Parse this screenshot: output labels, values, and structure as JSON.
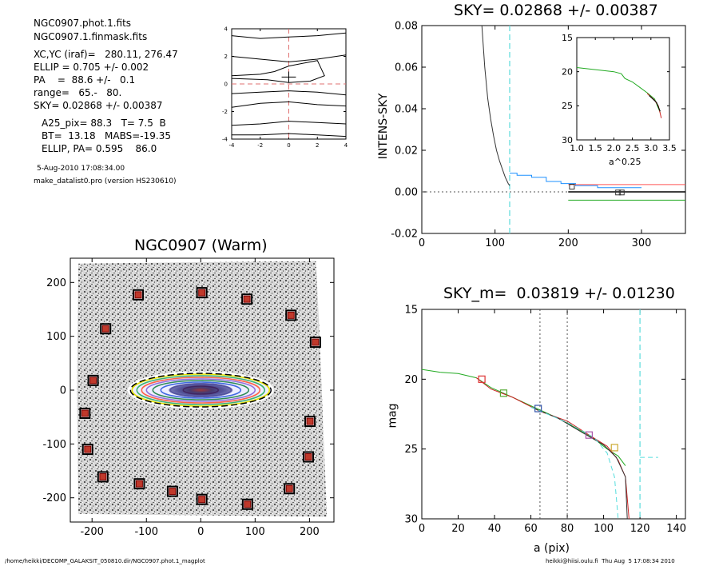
{
  "info": {
    "file1": "NGC0907.phot.1.fits",
    "file2": "NGC0907.1.finmask.fits",
    "xcyc": "XC,YC (iraf)=   280.11, 276.47",
    "ellip": "ELLIP = 0.705 +/- 0.002",
    "pa": "PA    =  88.6 +/-   0.1",
    "range": "range=   65.-   80.",
    "sky": "SKY= 0.02868 +/- 0.00387",
    "a25": "A25_pix= 88.3   T= 7.5  B",
    "bt": "BT=  13.18   MABS=-19.35",
    "ellip2": "ELLIP, PA= 0.595    86.0",
    "date": "5-Aug-2010 17:08:34.00",
    "prog": "make_datalist0.pro (version HS230610)"
  },
  "footer": {
    "left": "/home/heikki/DECOMP_GALAKSIT_050810.dir/NGC0907.phot.1_magplot",
    "right": "heikki@hiisi.oulu.fi  Thu Aug  5 17:08:34 2010"
  },
  "chart_data": [
    {
      "type": "line",
      "panel": "contour-thumbnail",
      "title": "",
      "xlim": [
        -4,
        4
      ],
      "ylim": [
        -4,
        4
      ],
      "xticks": [
        "-4",
        "-2",
        "0",
        "2",
        "4"
      ],
      "yticks": [
        "-4",
        "-2",
        "0",
        "2",
        "4"
      ],
      "series": [
        {
          "values": [
            [
              -4,
              3.5
            ],
            [
              -2,
              3.3
            ],
            [
              0,
              3.4
            ],
            [
              2,
              3.5
            ],
            [
              4,
              3.7
            ]
          ]
        },
        {
          "values": [
            [
              -4,
              2.0
            ],
            [
              -2,
              1.8
            ],
            [
              0,
              1.6
            ],
            [
              2,
              1.8
            ],
            [
              4,
              2.1
            ]
          ]
        },
        {
          "values": [
            [
              -4,
              0.6
            ],
            [
              -2,
              0.7
            ],
            [
              -1,
              0.9
            ],
            [
              0,
              1.3
            ],
            [
              2,
              1.7
            ],
            [
              2.5,
              0.6
            ],
            [
              1.5,
              0.2
            ],
            [
              0,
              0.1
            ],
            [
              -1.5,
              0.3
            ],
            [
              -4,
              0.4
            ]
          ]
        },
        {
          "values": [
            [
              -4,
              -0.7
            ],
            [
              -2,
              -0.6
            ],
            [
              0,
              -0.5
            ],
            [
              2,
              -0.6
            ],
            [
              4,
              -0.8
            ]
          ]
        },
        {
          "values": [
            [
              -4,
              -1.7
            ],
            [
              -2,
              -1.4
            ],
            [
              0,
              -1.3
            ],
            [
              2,
              -1.5
            ],
            [
              4,
              -1.6
            ]
          ]
        },
        {
          "values": [
            [
              -4,
              -3.0
            ],
            [
              -2,
              -2.9
            ],
            [
              0,
              -2.7
            ],
            [
              2,
              -2.8
            ],
            [
              4,
              -2.9
            ]
          ]
        },
        {
          "values": [
            [
              -4,
              -3.7
            ],
            [
              -2,
              -3.7
            ],
            [
              0,
              -3.6
            ],
            [
              2,
              -3.7
            ],
            [
              4,
              -3.8
            ]
          ]
        }
      ],
      "crosshair": [
        0,
        0
      ]
    },
    {
      "type": "line",
      "panel": "sky-profile",
      "title": "SKY= 0.02868 +/- 0.00387",
      "ylabel": "INTENS-SKY",
      "xlim": [
        0,
        360
      ],
      "ylim": [
        -0.02,
        0.08
      ],
      "xticks": [
        "0",
        "100",
        "200",
        "300"
      ],
      "yticks": [
        "-0.02",
        "0.00",
        "0.02",
        "0.04",
        "0.06",
        "0.08"
      ],
      "cutoff_x": 120,
      "series": [
        {
          "color": "#333333",
          "values": [
            [
              82,
              0.08
            ],
            [
              86,
              0.06
            ],
            [
              90,
              0.045
            ],
            [
              94,
              0.035
            ],
            [
              98,
              0.027
            ],
            [
              102,
              0.02
            ],
            [
              106,
              0.015
            ],
            [
              110,
              0.011
            ],
            [
              114,
              0.007
            ],
            [
              118,
              0.004
            ],
            [
              120,
              0.003
            ]
          ]
        },
        {
          "color": "#1e90ff",
          "values": [
            [
              120,
              0.009
            ],
            [
              130,
              0.009
            ],
            [
              130,
              0.008
            ],
            [
              150,
              0.008
            ],
            [
              150,
              0.007
            ],
            [
              170,
              0.007
            ],
            [
              170,
              0.005
            ],
            [
              190,
              0.005
            ],
            [
              190,
              0.004
            ],
            [
              210,
              0.004
            ],
            [
              210,
              0.003
            ],
            [
              240,
              0.003
            ],
            [
              240,
              0.002
            ],
            [
              300,
              0.002
            ]
          ]
        },
        {
          "color": "#ff5555",
          "values": [
            [
              200,
              0.0035
            ],
            [
              360,
              0.0035
            ]
          ]
        },
        {
          "color": "#000000",
          "values": [
            [
              200,
              0.0
            ],
            [
              360,
              0.0
            ]
          ]
        },
        {
          "color": "#22aa22",
          "values": [
            [
              200,
              -0.004
            ],
            [
              360,
              -0.004
            ]
          ]
        }
      ],
      "markers": [
        [
          205,
          0.0025
        ],
        [
          268,
          -0.0003
        ],
        [
          273,
          -0.0003
        ]
      ]
    },
    {
      "type": "line",
      "panel": "sky-inset",
      "title": "",
      "xlabel": "a^0.25",
      "xlim": [
        1.0,
        3.5
      ],
      "ylim": [
        15,
        30
      ],
      "xticks": [
        "1.0",
        "1.5",
        "2.0",
        "2.5",
        "3.0",
        "3.5"
      ],
      "yticks": [
        "15",
        "20",
        "25",
        "30"
      ],
      "series": [
        {
          "color": "#22aa22",
          "values": [
            [
              1.0,
              19.4
            ],
            [
              1.5,
              19.7
            ],
            [
              2.0,
              20.0
            ],
            [
              2.2,
              20.3
            ],
            [
              2.3,
              21.0
            ],
            [
              2.5,
              21.5
            ],
            [
              2.7,
              22.3
            ],
            [
              2.9,
              23.1
            ],
            [
              3.1,
              24.0
            ],
            [
              3.25,
              26.0
            ]
          ]
        },
        {
          "color": "#cc2222",
          "values": [
            [
              2.9,
              23.2
            ],
            [
              3.1,
              24.2
            ],
            [
              3.2,
              25.0
            ],
            [
              3.28,
              26.8
            ]
          ]
        },
        {
          "color": "#000000",
          "values": [
            [
              2.95,
              23.5
            ],
            [
              3.15,
              24.5
            ],
            [
              3.25,
              25.8
            ]
          ]
        }
      ]
    },
    {
      "type": "scatter",
      "panel": "galaxy-image",
      "title": "NGC0907 (Warm)",
      "xlim": [
        -240,
        245
      ],
      "ylim": [
        -245,
        245
      ],
      "xticks": [
        "-200",
        "-100",
        "0",
        "100",
        "200"
      ],
      "yticks": [
        "-200",
        "-100",
        "0",
        "100",
        "200"
      ],
      "ellipse_pa": 88.6,
      "ellipse_ellip": 0.705,
      "markers": [
        [
          -115,
          177
        ],
        [
          2,
          181
        ],
        [
          85,
          169
        ],
        [
          166,
          139
        ],
        [
          -175,
          114
        ],
        [
          211,
          89
        ],
        [
          -198,
          18
        ],
        [
          -213,
          -43
        ],
        [
          201,
          -58
        ],
        [
          -208,
          -110
        ],
        [
          198,
          -124
        ],
        [
          -180,
          -161
        ],
        [
          -113,
          -174
        ],
        [
          -52,
          -188
        ],
        [
          2,
          -203
        ],
        [
          163,
          -183
        ],
        [
          86,
          -212
        ]
      ]
    },
    {
      "type": "line",
      "panel": "mag-profile",
      "title": "SKY_m=  0.03819 +/- 0.01230",
      "xlabel": "a (pix)",
      "ylabel": "mag",
      "xlim": [
        0,
        145
      ],
      "ylim": [
        15,
        30
      ],
      "xticks": [
        "0",
        "20",
        "40",
        "60",
        "80",
        "100",
        "120",
        "140"
      ],
      "yticks": [
        "15",
        "20",
        "25",
        "30"
      ],
      "range_lines": [
        65,
        80
      ],
      "cutoff_x": 120,
      "series": [
        {
          "color": "#22aa22",
          "values": [
            [
              0,
              19.3
            ],
            [
              10,
              19.5
            ],
            [
              20,
              19.6
            ],
            [
              30,
              19.9
            ],
            [
              38,
              20.6
            ],
            [
              45,
              21.0
            ],
            [
              55,
              21.6
            ],
            [
              65,
              22.2
            ],
            [
              75,
              22.8
            ],
            [
              85,
              23.5
            ],
            [
              95,
              24.3
            ],
            [
              102,
              25.0
            ],
            [
              108,
              25.5
            ],
            [
              112,
              26.2
            ]
          ]
        },
        {
          "color": "#cc2222",
          "values": [
            [
              30,
              19.9
            ],
            [
              38,
              20.7
            ],
            [
              50,
              21.3
            ],
            [
              65,
              22.3
            ],
            [
              80,
              23.0
            ],
            [
              92,
              24.0
            ],
            [
              102,
              24.8
            ],
            [
              108,
              25.8
            ],
            [
              112,
              27.0
            ],
            [
              114,
              30.0
            ]
          ]
        },
        {
          "color": "#333333",
          "values": [
            [
              60,
              22.0
            ],
            [
              75,
              22.8
            ],
            [
              88,
              23.8
            ],
            [
              100,
              24.7
            ],
            [
              107,
              25.6
            ],
            [
              112,
              27.0
            ],
            [
              113,
              30.0
            ]
          ]
        },
        {
          "color": "#55dddd",
          "values": [
            [
              60,
              22.0
            ],
            [
              80,
              23.1
            ],
            [
              95,
              24.2
            ],
            [
              102,
              25.3
            ],
            [
              106,
              27.0
            ],
            [
              108,
              30.0
            ]
          ]
        },
        {
          "color": "#55dddd",
          "values": [
            [
              120,
              25.6
            ],
            [
              130,
              25.6
            ]
          ]
        }
      ],
      "markers": [
        {
          "x": 33,
          "y": 20.0,
          "color": "#dd3333"
        },
        {
          "x": 45,
          "y": 21.0,
          "color": "#55aa33"
        },
        {
          "x": 64,
          "y": 22.1,
          "color": "#3355aa"
        },
        {
          "x": 92,
          "y": 24.0,
          "color": "#aa55aa"
        },
        {
          "x": 106,
          "y": 24.9,
          "color": "#ccaa33"
        }
      ]
    }
  ]
}
